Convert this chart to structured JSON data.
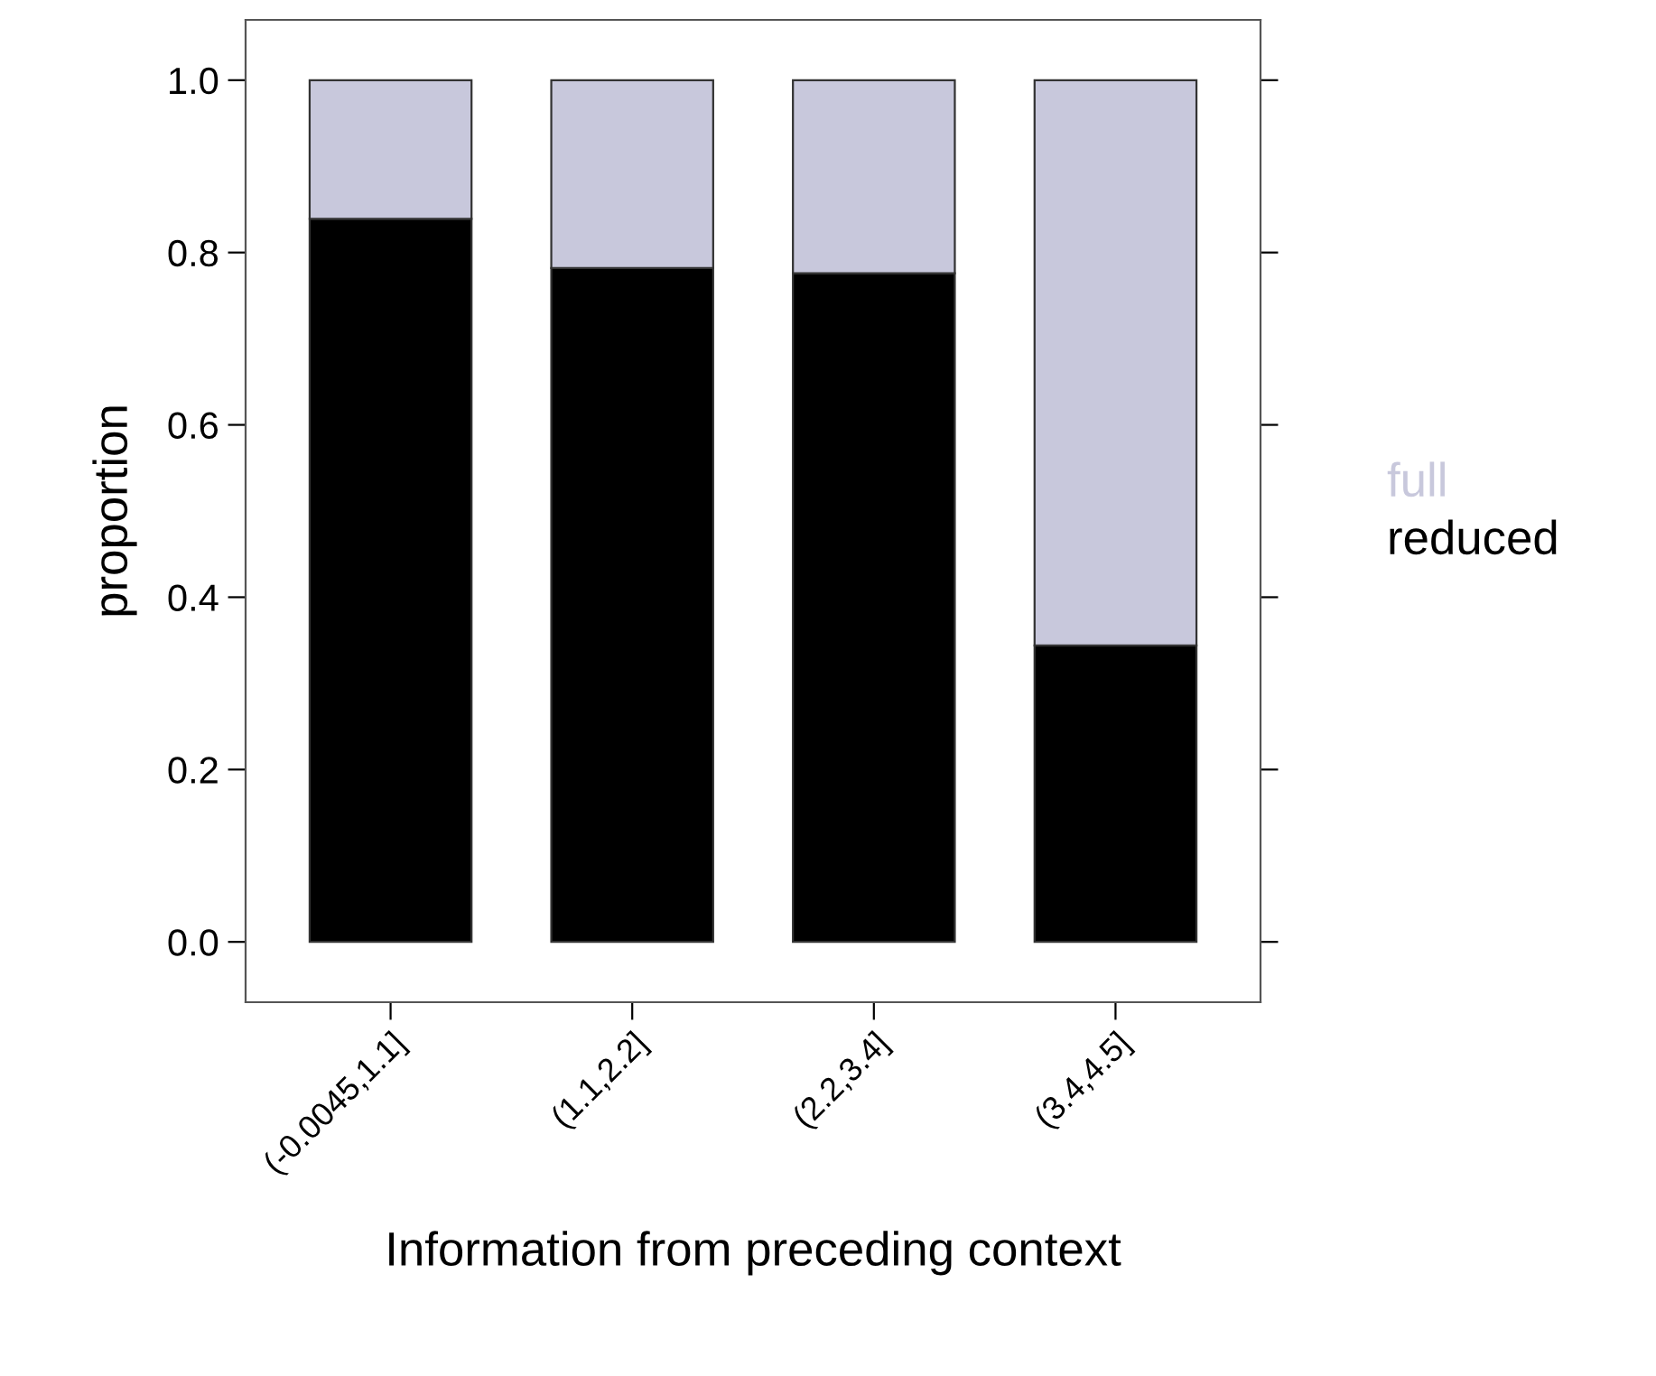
{
  "chart_data": {
    "type": "bar",
    "stacked": true,
    "xlabel": "Information from preceding context",
    "ylabel": "proportion",
    "categories": [
      "(-0.0045,1.1]",
      "(1.1,2.2]",
      "(2.2,3.4]",
      "(3.4,4.5]"
    ],
    "series": [
      {
        "name": "reduced",
        "color": "#000000",
        "values": [
          0.839,
          0.782,
          0.776,
          0.344
        ]
      },
      {
        "name": "full",
        "color": "#c8c8dc",
        "values": [
          0.161,
          0.218,
          0.224,
          0.656
        ]
      }
    ],
    "ylim": [
      -0.07,
      1.07
    ],
    "yticks": [
      {
        "value": 0,
        "label": "0.0"
      },
      0.2,
      0.4,
      0.6,
      0.8,
      {
        "value": 1,
        "label": "1.0"
      }
    ],
    "grid": false,
    "legend": "right"
  }
}
